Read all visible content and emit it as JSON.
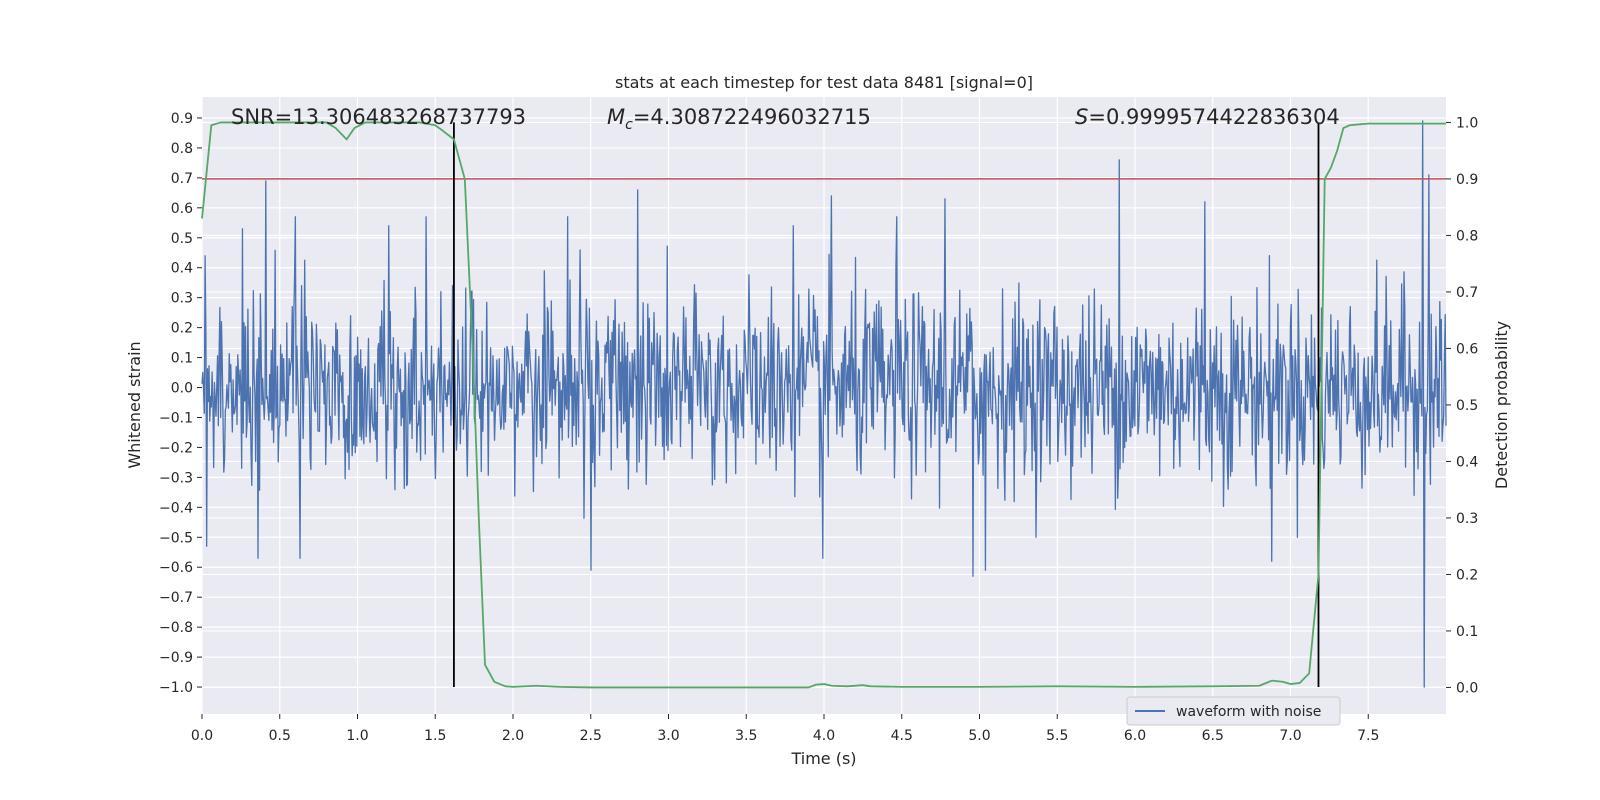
{
  "chart_data": {
    "type": "line",
    "title": "stats at each timestep for test data 8481 [signal=0]",
    "xlabel": "Time (s)",
    "ylabel_left": "Whitened strain",
    "ylabel_right": "Detection probability",
    "xlim": [
      0,
      8
    ],
    "ylim_left": [
      -1.09,
      0.97
    ],
    "ylim_right": [
      -0.047,
      1.045
    ],
    "x_ticks": [
      "0.0",
      "0.5",
      "1.0",
      "1.5",
      "2.0",
      "2.5",
      "3.0",
      "3.5",
      "4.0",
      "4.5",
      "5.0",
      "5.5",
      "6.0",
      "6.5",
      "7.0",
      "7.5"
    ],
    "y_ticks_left": [
      "0.9",
      "0.8",
      "0.7",
      "0.6",
      "0.5",
      "0.4",
      "0.3",
      "0.2",
      "0.1",
      "0.0",
      "-0.1",
      "-0.2",
      "-0.3",
      "-0.4",
      "-0.5",
      "-0.6",
      "-0.7",
      "-0.8",
      "-0.9",
      "-1.0"
    ],
    "y_ticks_right": [
      "1.0",
      "0.9",
      "0.8",
      "0.7",
      "0.6",
      "0.5",
      "0.4",
      "0.3",
      "0.2",
      "0.1",
      "0.0"
    ],
    "grid": true,
    "legend_position": "bottom-right",
    "annotations": {
      "snr": "SNR=13.306483268737793",
      "mc_symbol": "M",
      "mc_sub": "c",
      "mc_value": "=4.308722496032715",
      "s_symbol": "S",
      "s_value": "=0.9999574422836304"
    },
    "threshold_probability": 0.9,
    "vertical_lines_x": [
      1.62,
      7.18
    ],
    "series": [
      {
        "name": "waveform with noise",
        "axis": "left",
        "color": "#4c72b0",
        "style": "dense noise trace",
        "typical_band": [
          -0.35,
          0.35
        ],
        "peaks": [
          {
            "x": 0.02,
            "y": 0.44
          },
          {
            "x": 0.03,
            "y": -0.53
          },
          {
            "x": 0.26,
            "y": 0.53
          },
          {
            "x": 0.36,
            "y": -0.57
          },
          {
            "x": 0.41,
            "y": 0.69
          },
          {
            "x": 0.6,
            "y": 0.57
          },
          {
            "x": 0.63,
            "y": -0.57
          },
          {
            "x": 1.2,
            "y": 0.54
          },
          {
            "x": 1.44,
            "y": 0.57
          },
          {
            "x": 2.35,
            "y": 0.57
          },
          {
            "x": 2.5,
            "y": -0.61
          },
          {
            "x": 2.8,
            "y": 0.66
          },
          {
            "x": 3.8,
            "y": 0.54
          },
          {
            "x": 3.99,
            "y": -0.57
          },
          {
            "x": 4.05,
            "y": 0.64
          },
          {
            "x": 4.47,
            "y": 0.57
          },
          {
            "x": 4.78,
            "y": 0.63
          },
          {
            "x": 4.96,
            "y": -0.63
          },
          {
            "x": 5.04,
            "y": -0.61
          },
          {
            "x": 5.9,
            "y": 0.76
          },
          {
            "x": 6.45,
            "y": 0.62
          },
          {
            "x": 6.88,
            "y": -0.58
          },
          {
            "x": 7.85,
            "y": 0.89
          },
          {
            "x": 7.89,
            "y": 0.71
          },
          {
            "x": 7.86,
            "y": -1.0
          }
        ]
      },
      {
        "name": "",
        "axis": "right",
        "color": "#55a868",
        "x": [
          0,
          0.06,
          0.12,
          0.2,
          0.4,
          0.6,
          0.8,
          0.86,
          0.93,
          0.98,
          1.05,
          1.2,
          1.4,
          1.5,
          1.55,
          1.62,
          1.69,
          1.74,
          1.78,
          1.82,
          1.88,
          1.95,
          2.0,
          2.15,
          2.3,
          2.5,
          3.0,
          3.5,
          3.9,
          3.95,
          4.0,
          4.05,
          4.15,
          4.25,
          4.3,
          4.5,
          5.0,
          5.5,
          6.0,
          6.5,
          6.8,
          6.88,
          6.95,
          7.0,
          7.06,
          7.12,
          7.18,
          7.22,
          7.26,
          7.3,
          7.34,
          7.38,
          7.5,
          7.7,
          8.0
        ],
        "y": [
          0.83,
          0.995,
          1.0,
          1.0,
          1.0,
          1.0,
          1.0,
          0.99,
          0.97,
          0.99,
          1.0,
          1.0,
          1.0,
          0.995,
          0.985,
          0.97,
          0.9,
          0.6,
          0.3,
          0.04,
          0.01,
          0.002,
          0.001,
          0.003,
          0.001,
          0.0,
          0.0,
          0.0,
          0.0,
          0.005,
          0.006,
          0.003,
          0.002,
          0.004,
          0.002,
          0.001,
          0.001,
          0.002,
          0.001,
          0.002,
          0.003,
          0.012,
          0.01,
          0.006,
          0.008,
          0.025,
          0.2,
          0.9,
          0.92,
          0.95,
          0.99,
          0.995,
          0.998,
          0.998,
          0.998
        ]
      }
    ]
  }
}
